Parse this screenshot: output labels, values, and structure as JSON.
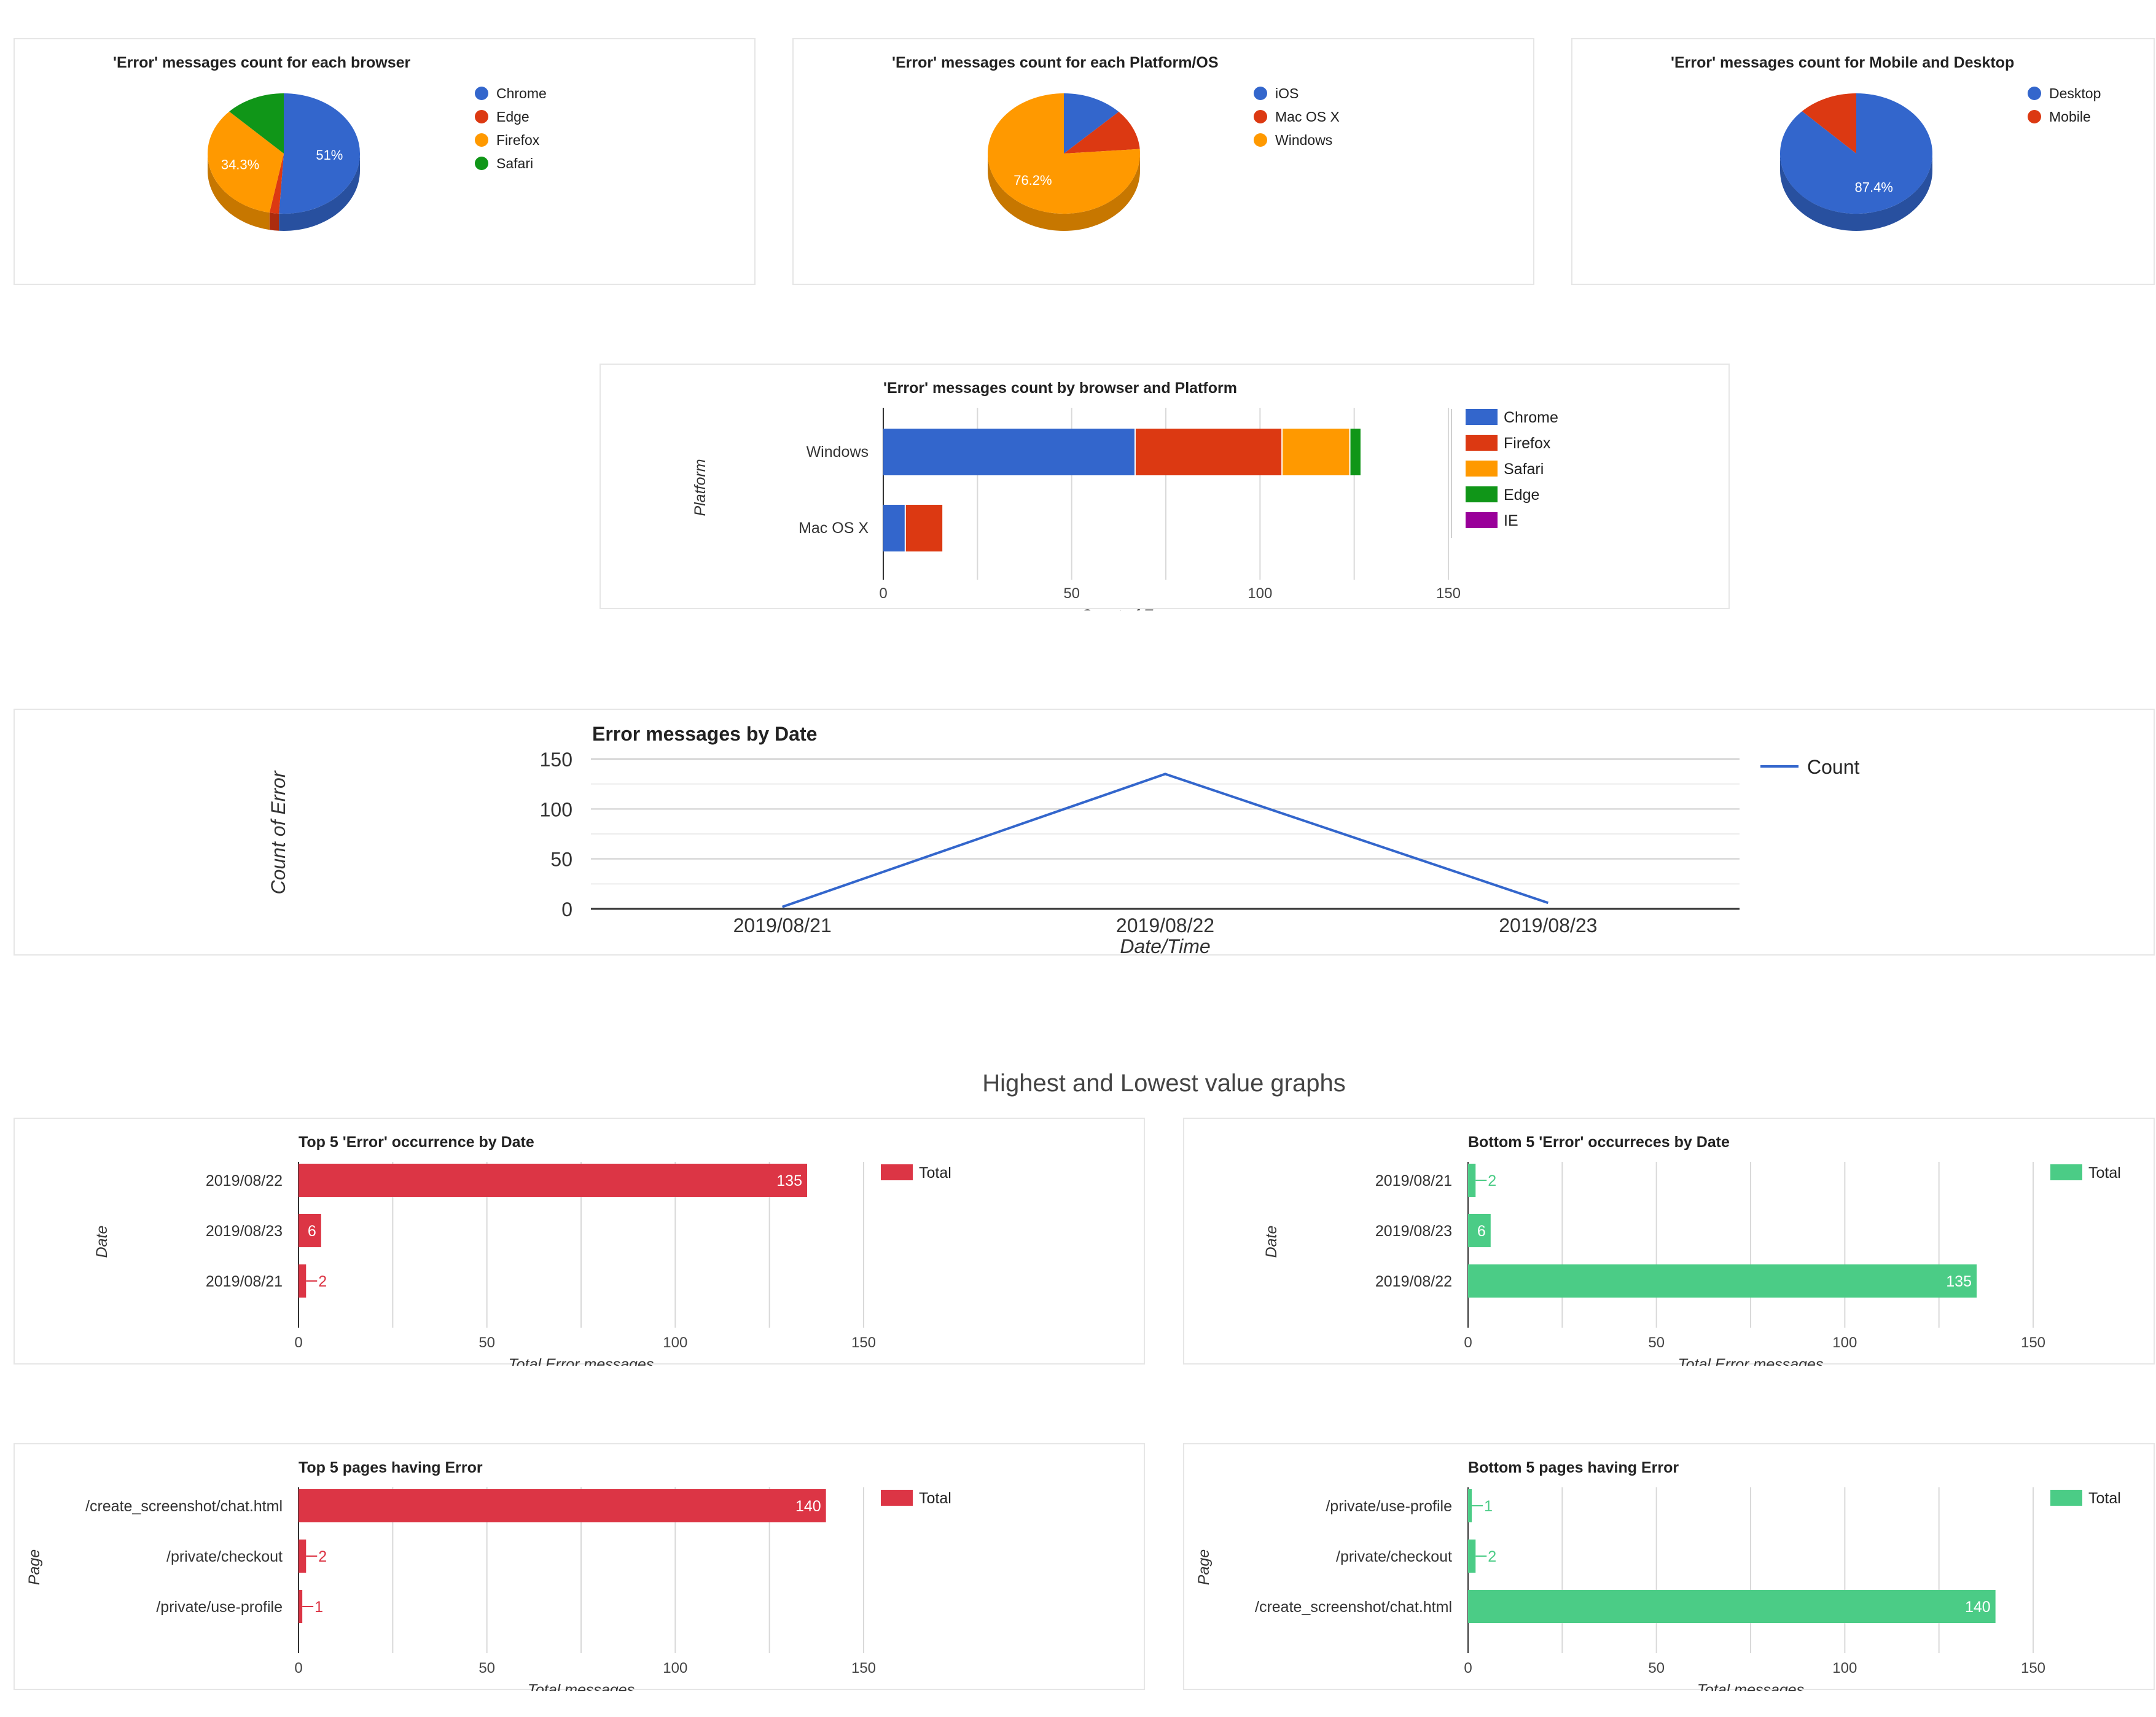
{
  "colors": {
    "blue": "#3366cc",
    "red": "#dc3912",
    "orange": "#ff9900",
    "green": "#109618",
    "purple": "#990099",
    "top_red": "#dc3545",
    "bottom_green": "#4bcc86",
    "grid": "#d9d9d9",
    "axis": "#333333"
  },
  "section_heading": "Highest and Lowest value graphs",
  "chart_data": [
    {
      "id": "pie_browser",
      "type": "pie",
      "title": "'Error' messages count for each browser",
      "labels": [
        "Chrome",
        "Edge",
        "Firefox",
        "Safari"
      ],
      "values": [
        51,
        2,
        34.3,
        12.7
      ],
      "slice_labels": [
        "51%",
        "",
        "34.3%",
        ""
      ],
      "colors": [
        "#3366cc",
        "#dc3912",
        "#ff9900",
        "#109618"
      ]
    },
    {
      "id": "pie_platform",
      "type": "pie",
      "title": "'Error' messages count for each Platform/OS",
      "labels": [
        "iOS",
        "Mac OS X",
        "Windows"
      ],
      "values": [
        12.8,
        11,
        76.2
      ],
      "slice_labels": [
        "",
        "",
        "76.2%"
      ],
      "colors": [
        "#3366cc",
        "#dc3912",
        "#ff9900"
      ]
    },
    {
      "id": "pie_device",
      "type": "pie",
      "title": "'Error' messages count for Mobile and Desktop",
      "labels": [
        "Desktop",
        "Mobile"
      ],
      "values": [
        87.4,
        12.6
      ],
      "slice_labels": [
        "87.4%",
        ""
      ],
      "colors": [
        "#3366cc",
        "#dc3912"
      ]
    },
    {
      "id": "stacked_platform",
      "type": "bar",
      "stacked": true,
      "orientation": "horizontal",
      "title": "'Error' messages count by browser and Platform",
      "categories": [
        "Windows",
        "Mac OS X"
      ],
      "series": [
        {
          "name": "Chrome",
          "values": [
            67,
            6
          ],
          "color": "#3366cc"
        },
        {
          "name": "Firefox",
          "values": [
            39,
            10
          ],
          "color": "#dc3912"
        },
        {
          "name": "Safari",
          "values": [
            18,
            0
          ],
          "color": "#ff9900"
        },
        {
          "name": "Edge",
          "values": [
            3,
            0
          ],
          "color": "#109618"
        },
        {
          "name": "IE",
          "values": [
            0,
            0
          ],
          "color": "#990099"
        }
      ],
      "xlabel": "Count of Error messages",
      "ylabel": "Platform",
      "xlim": [
        0,
        150
      ],
      "xticks": [
        0,
        50,
        100,
        150
      ]
    },
    {
      "id": "line_date",
      "type": "line",
      "title": "Error messages by Date",
      "x": [
        "2019/08/21",
        "2019/08/22",
        "2019/08/23"
      ],
      "series": [
        {
          "name": "Count",
          "values": [
            2,
            135,
            6
          ],
          "color": "#3366cc"
        }
      ],
      "xlabel": "Date/Time",
      "ylabel": "Count of Error",
      "ylim": [
        0,
        150
      ],
      "yticks": [
        0,
        50,
        100,
        150
      ]
    },
    {
      "id": "top_date",
      "type": "bar",
      "orientation": "horizontal",
      "title": "Top 5 'Error' occurrence by Date",
      "categories": [
        "2019/08/22",
        "2019/08/23",
        "2019/08/21"
      ],
      "series": [
        {
          "name": "Total",
          "values": [
            135,
            6,
            2
          ],
          "color": "#dc3545"
        }
      ],
      "xlabel": "Total Error messages",
      "ylabel": "Date",
      "xlim": [
        0,
        150
      ],
      "xticks": [
        0,
        50,
        100,
        150
      ]
    },
    {
      "id": "bottom_date",
      "type": "bar",
      "orientation": "horizontal",
      "title": "Bottom 5 'Error' occurreces by Date",
      "categories": [
        "2019/08/21",
        "2019/08/23",
        "2019/08/22"
      ],
      "series": [
        {
          "name": "Total",
          "values": [
            2,
            6,
            135
          ],
          "color": "#4bcc86"
        }
      ],
      "xlabel": "Total Error messages",
      "ylabel": "Date",
      "xlim": [
        0,
        150
      ],
      "xticks": [
        0,
        50,
        100,
        150
      ]
    },
    {
      "id": "top_pages",
      "type": "bar",
      "orientation": "horizontal",
      "title": "Top 5 pages having Error",
      "categories": [
        "/create_screenshot/chat.html",
        "/private/checkout",
        "/private/use-profile"
      ],
      "series": [
        {
          "name": "Total",
          "values": [
            140,
            2,
            1
          ],
          "color": "#dc3545"
        }
      ],
      "xlabel": "Total messages",
      "ylabel": "Page",
      "xlim": [
        0,
        150
      ],
      "xticks": [
        0,
        50,
        100,
        150
      ]
    },
    {
      "id": "bottom_pages",
      "type": "bar",
      "orientation": "horizontal",
      "title": "Bottom 5 pages having Error",
      "categories": [
        "/private/use-profile",
        "/private/checkout",
        "/create_screenshot/chat.html"
      ],
      "series": [
        {
          "name": "Total",
          "values": [
            1,
            2,
            140
          ],
          "color": "#4bcc86"
        }
      ],
      "xlabel": "Total messages",
      "ylabel": "Page",
      "xlim": [
        0,
        150
      ],
      "xticks": [
        0,
        50,
        100,
        150
      ]
    }
  ]
}
